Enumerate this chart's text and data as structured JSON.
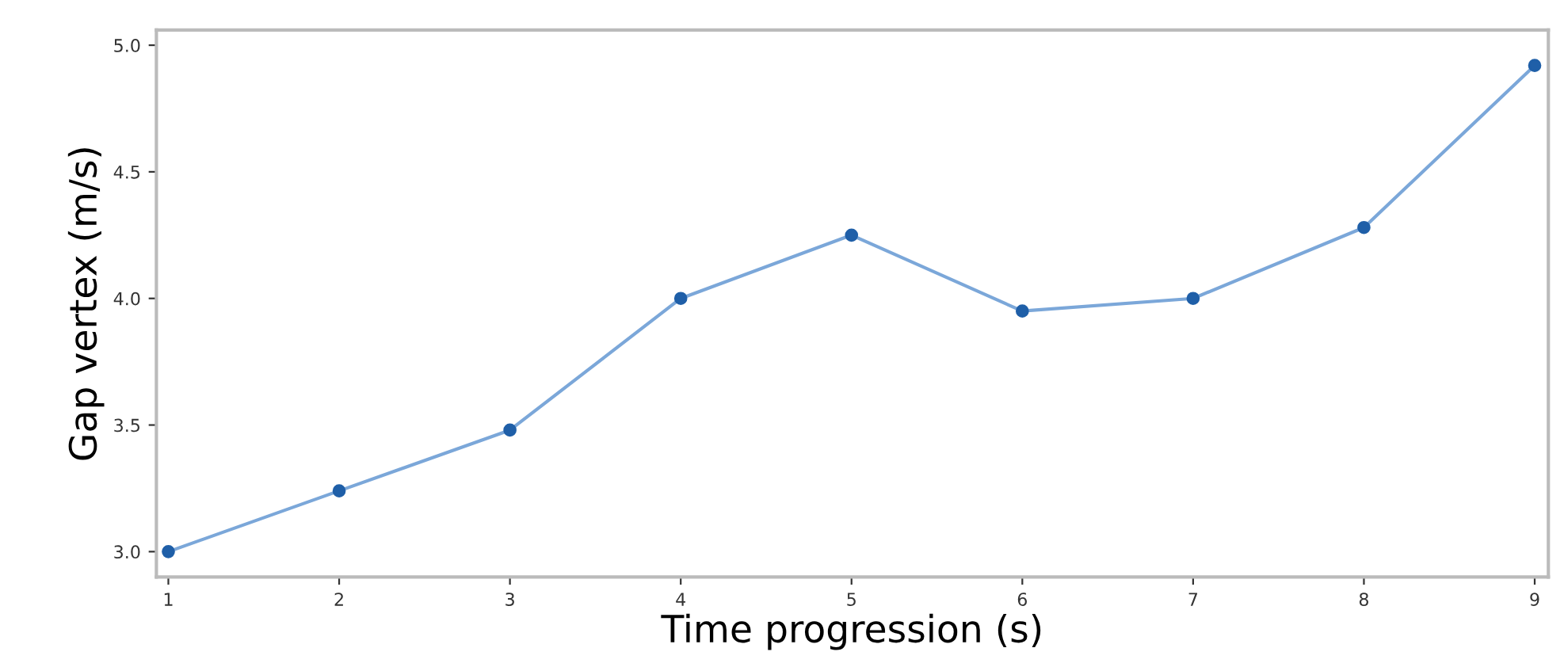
{
  "chart_data": {
    "type": "line",
    "xlabel": "Time progression (s)",
    "ylabel": "Gap vertex (m/s)",
    "x": [
      1,
      2,
      3,
      4,
      5,
      6,
      7,
      8,
      9
    ],
    "series": [
      {
        "color": "#7ba7d9",
        "values": [
          3.0,
          3.24,
          3.48,
          4.0,
          4.25,
          3.95,
          4.0,
          4.28,
          4.92
        ]
      }
    ],
    "xlim": [
      0.93,
      9.08
    ],
    "ylim": [
      2.9,
      5.06
    ],
    "xticks": [
      1,
      2,
      3,
      4,
      5,
      6,
      7,
      8,
      9
    ],
    "yticks": [
      {
        "value": 3,
        "label": "3.0"
      },
      3.5,
      {
        "value": 4,
        "label": "4.0"
      },
      4.5,
      {
        "value": 5,
        "label": "5.0"
      }
    ],
    "marker": "circle",
    "line_style": "solid",
    "grid": false,
    "legend": false
  }
}
